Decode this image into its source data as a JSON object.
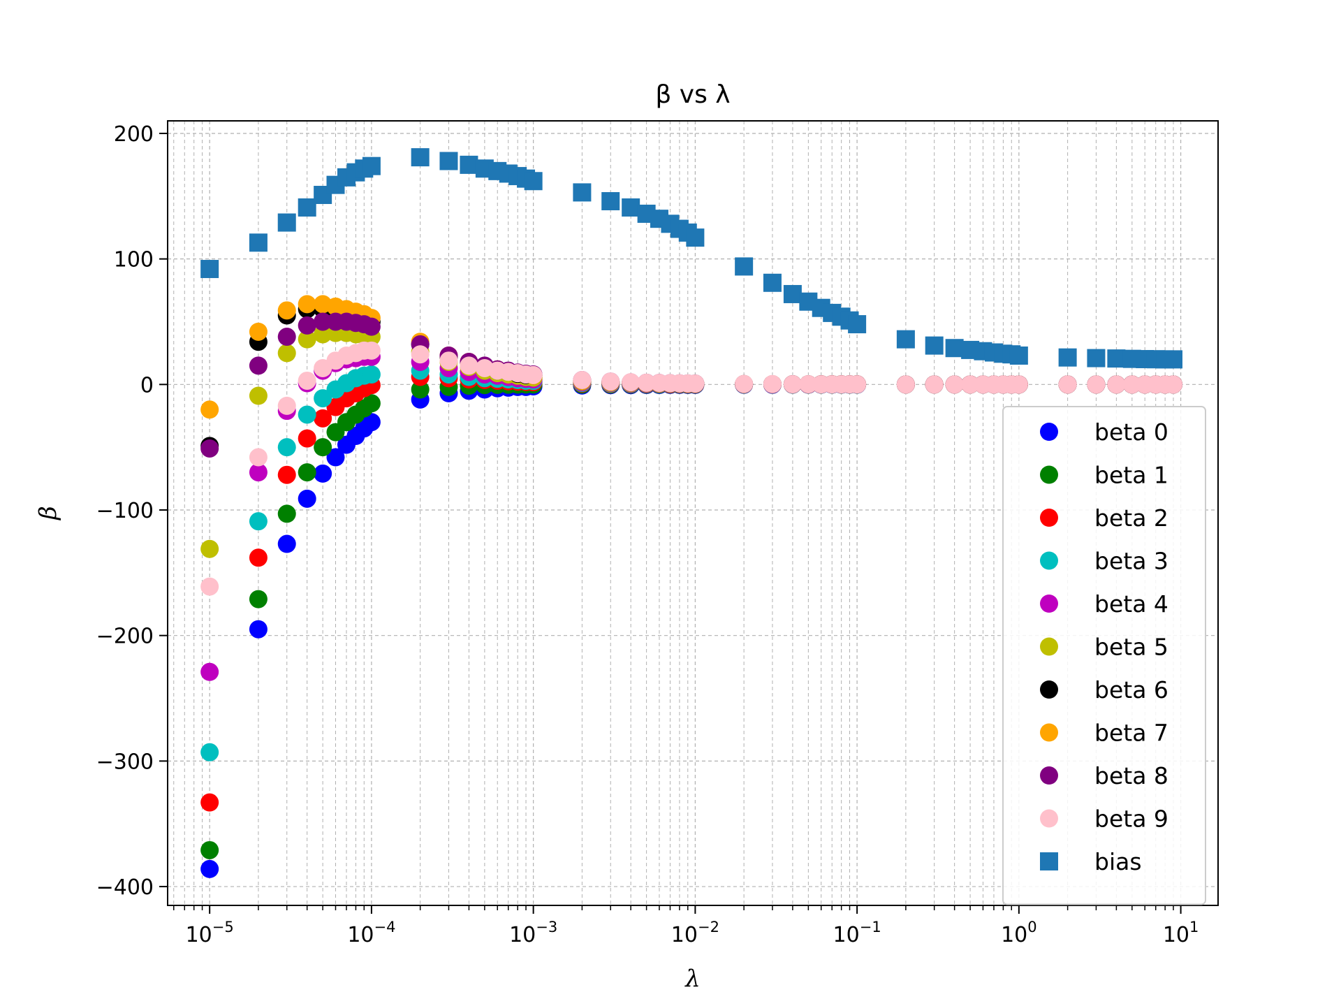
{
  "chart_data": {
    "type": "scatter",
    "title": "β vs λ",
    "xlabel": "λ",
    "ylabel": "β",
    "xscale": "log",
    "xlim": [
      5.5e-06,
      17
    ],
    "ylim": [
      -415,
      210
    ],
    "grid": true,
    "grid_minor_x": true,
    "legend_position": "lower right",
    "x_ticks": [
      {
        "value": 1e-05,
        "base": "10",
        "exp": "−5"
      },
      {
        "value": 0.0001,
        "base": "10",
        "exp": "−4"
      },
      {
        "value": 0.001,
        "base": "10",
        "exp": "−3"
      },
      {
        "value": 0.01,
        "base": "10",
        "exp": "−2"
      },
      {
        "value": 0.1,
        "base": "10",
        "exp": "−1"
      },
      {
        "value": 1,
        "base": "10",
        "exp": "0"
      },
      {
        "value": 10,
        "base": "10",
        "exp": "1"
      }
    ],
    "y_ticks": [
      {
        "value": 200,
        "label": "200"
      },
      {
        "value": 100,
        "label": "100"
      },
      {
        "value": 0,
        "label": "0"
      },
      {
        "value": -100,
        "label": "−100"
      },
      {
        "value": -200,
        "label": "−200"
      },
      {
        "value": -300,
        "label": "−300"
      },
      {
        "value": -400,
        "label": "−400"
      }
    ],
    "x": [
      1e-05,
      2e-05,
      3e-05,
      4e-05,
      5e-05,
      6e-05,
      7e-05,
      8e-05,
      9e-05,
      0.0001,
      0.0002,
      0.0003,
      0.0004,
      0.0005,
      0.0006,
      0.0007,
      0.0008,
      0.0009,
      0.001,
      0.002,
      0.003,
      0.004,
      0.005,
      0.006,
      0.007,
      0.008,
      0.009,
      0.01,
      0.02,
      0.03,
      0.04,
      0.05,
      0.06,
      0.07,
      0.08,
      0.09,
      0.1,
      0.2,
      0.3,
      0.4,
      0.5,
      0.6,
      0.7,
      0.8,
      0.9,
      1,
      2,
      3,
      4,
      5,
      6,
      7,
      8,
      9
    ],
    "series": [
      {
        "name": "beta 0",
        "color": "#0000ff",
        "marker": "circle",
        "values": [
          -386,
          -195,
          -127,
          -91,
          -71,
          -58,
          -48,
          -41,
          -35,
          -30,
          -12,
          -7,
          -5,
          -4,
          -3,
          -2.5,
          -2,
          -2,
          -1.5,
          -0.8,
          -0.5,
          -0.5,
          -0.4,
          -0.4,
          -0.3,
          -0.3,
          -0.3,
          -0.3,
          -0.2,
          -0.2,
          -0.1,
          -0.1,
          -0.1,
          -0.1,
          -0.1,
          -0.1,
          -0.1,
          0,
          0,
          0,
          0,
          0,
          0,
          0,
          0,
          0,
          0,
          0,
          0,
          0,
          0,
          0,
          0,
          0
        ]
      },
      {
        "name": "beta 1",
        "color": "#008000",
        "marker": "circle",
        "values": [
          -371,
          -171,
          -103,
          -70,
          -50,
          -38,
          -30,
          -24,
          -19,
          -15,
          -4,
          -2,
          -1,
          -0.5,
          -0.3,
          -0.2,
          -0.1,
          0,
          0,
          0,
          0,
          0,
          0,
          0,
          0,
          0,
          0,
          0,
          0,
          0,
          0,
          0,
          0,
          0,
          0,
          0,
          0,
          0,
          0,
          0,
          0,
          0,
          0,
          0,
          0,
          0,
          0,
          0,
          0,
          0,
          0,
          0,
          0,
          0
        ]
      },
      {
        "name": "beta 2",
        "color": "#ff0000",
        "marker": "circle",
        "values": [
          -333,
          -138,
          -72,
          -43,
          -27,
          -18,
          -11,
          -7,
          -3,
          -0.5,
          6,
          5,
          4,
          3.5,
          3,
          2.5,
          2.2,
          2,
          1.8,
          0.8,
          0.5,
          0.4,
          0.3,
          0.3,
          0.2,
          0.2,
          0.2,
          0.2,
          0.1,
          0.1,
          0.1,
          0.1,
          0.1,
          0.1,
          0.1,
          0.1,
          0.1,
          0,
          0,
          0,
          0,
          0,
          0,
          0,
          0,
          0,
          0,
          0,
          0,
          0,
          0,
          0,
          0,
          0
        ]
      },
      {
        "name": "beta 3",
        "color": "#00bfbf",
        "marker": "circle",
        "values": [
          -293,
          -109,
          -50,
          -24,
          -11,
          -4,
          1,
          5,
          7,
          8,
          11,
          8,
          6,
          5,
          4.5,
          4,
          3.5,
          3,
          2.8,
          1.2,
          0.8,
          0.6,
          0.5,
          0.4,
          0.4,
          0.3,
          0.3,
          0.3,
          0.1,
          0.1,
          0.1,
          0.1,
          0.1,
          0.1,
          0.1,
          0.1,
          0.1,
          0,
          0,
          0,
          0,
          0,
          0,
          0,
          0,
          0,
          0,
          0,
          0,
          0,
          0,
          0,
          0,
          0
        ]
      },
      {
        "name": "beta 4",
        "color": "#bf00bf",
        "marker": "circle",
        "values": [
          -229,
          -70,
          -21,
          1,
          11,
          17,
          20,
          21,
          22,
          22,
          18,
          13,
          10,
          8,
          7,
          6,
          5,
          4.5,
          4,
          1.8,
          1.2,
          0.9,
          0.7,
          0.6,
          0.5,
          0.5,
          0.4,
          0.4,
          0.2,
          0.1,
          0.1,
          0.1,
          0.1,
          0.1,
          0.1,
          0.1,
          0.1,
          0,
          0,
          0,
          0,
          0,
          0,
          0,
          0,
          0,
          0,
          0,
          0,
          0,
          0,
          0,
          0,
          0
        ]
      },
      {
        "name": "beta 5",
        "color": "#bfbf00",
        "marker": "circle",
        "values": [
          -131,
          -9,
          25,
          36,
          40,
          41,
          41,
          40,
          39,
          38,
          26,
          18,
          14,
          11,
          9,
          8,
          7,
          6,
          5.5,
          2.5,
          1.6,
          1.2,
          1,
          0.8,
          0.7,
          0.6,
          0.5,
          0.5,
          0.2,
          0.2,
          0.1,
          0.1,
          0.1,
          0.1,
          0.1,
          0.1,
          0.1,
          0,
          0,
          0,
          0,
          0,
          0,
          0,
          0,
          0,
          0,
          0,
          0,
          0,
          0,
          0,
          0,
          0
        ]
      },
      {
        "name": "beta 6",
        "color": "#000000",
        "marker": "circle",
        "values": [
          -49,
          34,
          55,
          60,
          60,
          58,
          56,
          54,
          52,
          50,
          32,
          22,
          17,
          14,
          11,
          10,
          8.5,
          7.5,
          7,
          3,
          2,
          1.5,
          1.2,
          1,
          0.8,
          0.7,
          0.6,
          0.6,
          0.3,
          0.2,
          0.2,
          0.1,
          0.1,
          0.1,
          0.1,
          0.1,
          0.1,
          0,
          0,
          0,
          0,
          0,
          0,
          0,
          0,
          0,
          0,
          0,
          0,
          0,
          0,
          0,
          0,
          0
        ]
      },
      {
        "name": "beta 7",
        "color": "#ffa500",
        "marker": "circle",
        "values": [
          -20,
          42,
          59,
          64,
          64,
          62,
          60,
          58,
          56,
          53,
          34,
          23,
          18,
          14,
          12,
          10,
          9,
          8,
          7,
          3,
          2,
          1.5,
          1.2,
          1,
          0.9,
          0.8,
          0.7,
          0.6,
          0.3,
          0.2,
          0.2,
          0.1,
          0.1,
          0.1,
          0.1,
          0.1,
          0.1,
          0,
          0,
          0,
          0,
          0,
          0,
          0,
          0,
          0,
          0,
          0,
          0,
          0,
          0,
          0,
          0,
          0
        ]
      },
      {
        "name": "beta 8",
        "color": "#800080",
        "marker": "circle",
        "values": [
          -51,
          15,
          38,
          47,
          50,
          50,
          50,
          49,
          48,
          46,
          32,
          23,
          18,
          15,
          12,
          11,
          9.5,
          8.5,
          8,
          3.5,
          2.3,
          1.7,
          1.4,
          1.2,
          1,
          0.9,
          0.8,
          0.7,
          0.3,
          0.2,
          0.2,
          0.1,
          0.1,
          0.1,
          0.1,
          0.1,
          0.1,
          0,
          0,
          0,
          0,
          0,
          0,
          0,
          0,
          0,
          0,
          0,
          0,
          0,
          0,
          0,
          0,
          0
        ]
      },
      {
        "name": "beta 9",
        "color": "#ffc0cb",
        "marker": "circle",
        "values": [
          -161,
          -58,
          -17,
          3,
          13,
          19,
          23,
          25,
          27,
          27,
          24,
          19,
          15,
          13,
          11,
          10,
          9,
          8,
          7.5,
          3.5,
          2.3,
          1.8,
          1.4,
          1.2,
          1,
          0.9,
          0.8,
          0.7,
          0.4,
          0.3,
          0.2,
          0.2,
          0.1,
          0.1,
          0.1,
          0.1,
          0.1,
          0,
          0,
          0,
          0,
          0,
          0,
          0,
          0,
          0,
          0,
          0,
          0,
          0,
          0,
          0,
          0,
          0
        ]
      },
      {
        "name": "bias",
        "color": "#1f77b4",
        "marker": "square",
        "values": [
          92,
          113,
          129,
          141,
          151,
          159,
          165,
          169,
          172,
          174,
          181,
          178,
          175,
          172,
          170,
          168,
          166,
          164,
          162,
          153,
          146,
          141,
          136,
          132,
          128,
          124,
          121,
          117,
          94,
          81,
          72,
          66,
          61,
          57,
          54,
          51,
          48,
          36,
          31,
          29,
          27.5,
          26.5,
          25.5,
          24.5,
          24,
          23,
          21.5,
          21,
          20.7,
          20.4,
          20.2,
          20.1,
          20,
          20
        ]
      }
    ]
  }
}
